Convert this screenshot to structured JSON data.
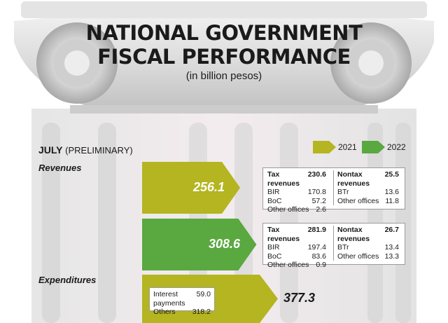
{
  "header": {
    "title_line1": "NATIONAL GOVERNMENT",
    "title_line2": "FISCAL PERFORMANCE",
    "subtitle": "(in billion pesos)"
  },
  "period": {
    "month": "JULY",
    "note": "(PRELIMINARY)"
  },
  "colors": {
    "2021": "#b4b520",
    "2022": "#5aa840",
    "pillar": "#d7d7d7"
  },
  "chart_data": {
    "type": "bar",
    "title": "NATIONAL GOVERNMENT FISCAL PERFORMANCE",
    "unit": "(in billion pesos)",
    "legend": [
      "2021",
      "2022"
    ],
    "categories": [
      "Revenues",
      "Expenditures"
    ],
    "series": [
      {
        "name": "2021",
        "values": [
          256.1,
          377.3
        ]
      },
      {
        "name": "2022",
        "values": [
          308.6,
          null
        ]
      }
    ],
    "breakdowns": {
      "revenues_2021": {
        "value": "256.1",
        "tax": {
          "label": "Tax revenues",
          "value": "230.6",
          "items": [
            {
              "label": "BIR",
              "value": "170.8"
            },
            {
              "label": "BoC",
              "value": "57.2"
            },
            {
              "label": "Other offices",
              "value": "2.6"
            }
          ]
        },
        "nontax": {
          "label": "Nontax revenues",
          "value": "25.5",
          "items": [
            {
              "label": "BTr",
              "value": "13.6"
            },
            {
              "label": "Other offices",
              "value": "11.8"
            }
          ]
        }
      },
      "revenues_2022": {
        "value": "308.6",
        "tax": {
          "label": "Tax revenues",
          "value": "281.9",
          "items": [
            {
              "label": "BIR",
              "value": "197.4"
            },
            {
              "label": "BoC",
              "value": "83.6"
            },
            {
              "label": "Other offices",
              "value": "0.9"
            }
          ]
        },
        "nontax": {
          "label": "Nontax revenues",
          "value": "26.7",
          "items": [
            {
              "label": "BTr",
              "value": "13.4"
            },
            {
              "label": "Other offices",
              "value": "13.3"
            }
          ]
        }
      },
      "expenditures_2021": {
        "value": "377.3",
        "items": [
          {
            "label": "Interest payments",
            "value": "59.0"
          },
          {
            "label": "Others",
            "value": "318.2"
          }
        ]
      }
    }
  }
}
